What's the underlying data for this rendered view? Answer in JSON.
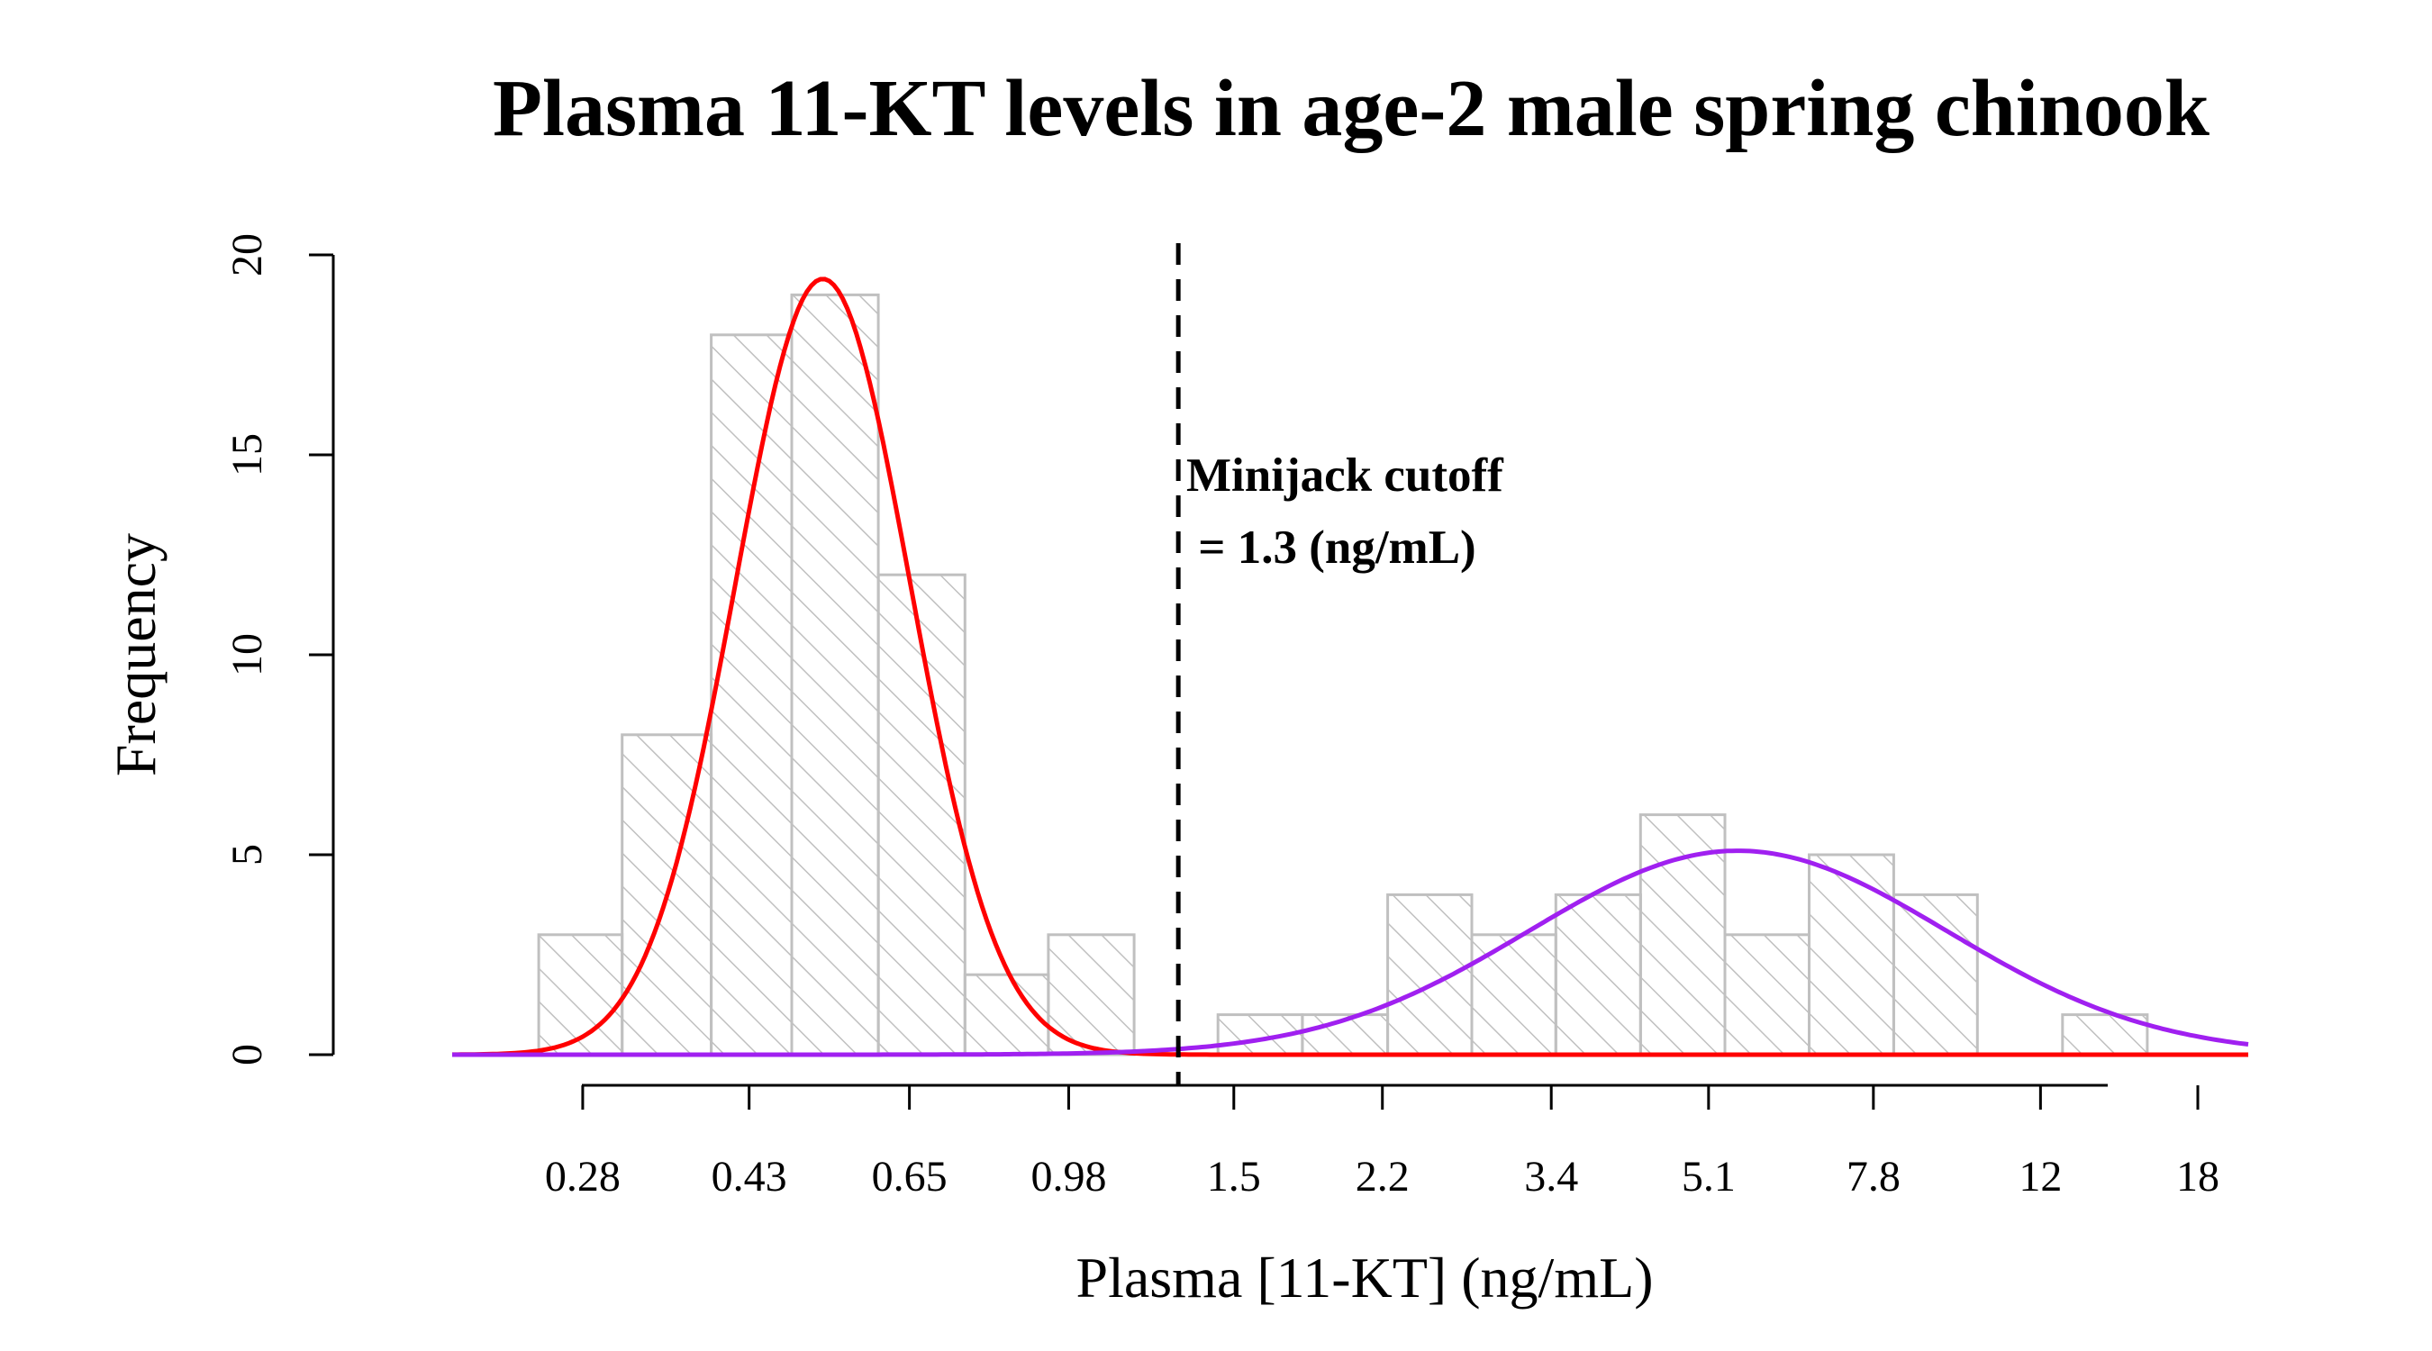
{
  "chart_data": {
    "type": "bar",
    "title": "Plasma 11-KT levels in age-2 male spring chinook",
    "xlabel": "Plasma [11-KT] (ng/mL)",
    "ylabel": "Frequency",
    "x_scale": "log",
    "ylim": [
      0,
      20
    ],
    "y_ticks": [
      0,
      5,
      10,
      15,
      20
    ],
    "y_tick_labels": [
      "0",
      "5",
      "10",
      "15",
      "20"
    ],
    "x_ticks": [
      0.28,
      0.43,
      0.65,
      0.98,
      1.5,
      2.2,
      3.4,
      5.1,
      7.8,
      12,
      18
    ],
    "x_tick_labels": [
      "0.28",
      "0.43",
      "0.65",
      "0.98",
      "1.5",
      "2.2",
      "3.4",
      "5.1",
      "7.8",
      "12",
      "18"
    ],
    "bins": [
      {
        "lo": 0.25,
        "hi": 0.31,
        "count": 3
      },
      {
        "lo": 0.31,
        "hi": 0.39,
        "count": 8
      },
      {
        "lo": 0.39,
        "hi": 0.48,
        "count": 18
      },
      {
        "lo": 0.48,
        "hi": 0.6,
        "count": 19
      },
      {
        "lo": 0.6,
        "hi": 0.75,
        "count": 12
      },
      {
        "lo": 0.75,
        "hi": 0.93,
        "count": 2
      },
      {
        "lo": 0.93,
        "hi": 1.16,
        "count": 3
      },
      {
        "lo": 1.16,
        "hi": 1.44,
        "count": 0
      },
      {
        "lo": 1.44,
        "hi": 1.79,
        "count": 1
      },
      {
        "lo": 1.79,
        "hi": 2.23,
        "count": 1
      },
      {
        "lo": 2.23,
        "hi": 2.77,
        "count": 4
      },
      {
        "lo": 2.77,
        "hi": 3.44,
        "count": 3
      },
      {
        "lo": 3.44,
        "hi": 4.28,
        "count": 4
      },
      {
        "lo": 4.28,
        "hi": 5.32,
        "count": 6
      },
      {
        "lo": 5.32,
        "hi": 6.61,
        "count": 3
      },
      {
        "lo": 6.61,
        "hi": 8.22,
        "count": 5
      },
      {
        "lo": 8.22,
        "hi": 10.2,
        "count": 4
      },
      {
        "lo": 10.2,
        "hi": 12.7,
        "count": 0
      },
      {
        "lo": 12.7,
        "hi": 15.8,
        "count": 1
      }
    ],
    "curves": [
      {
        "color": "#ff0000",
        "peak_x": 0.52,
        "peak_y": 19.4,
        "sd_log10": 0.098
      },
      {
        "color": "#a020f0",
        "peak_x": 5.5,
        "peak_y": 5.1,
        "sd_log10": 0.234
      }
    ],
    "x_range": [
      0.2,
      20.5
    ],
    "cutoff": {
      "x": 1.3,
      "label_line1": "Minijack cutoff",
      "label_line2": " = 1.3 (ng/mL)"
    },
    "grid": false
  }
}
